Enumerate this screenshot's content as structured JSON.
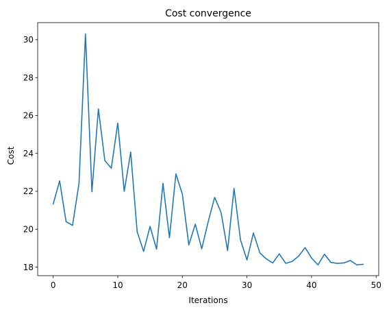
{
  "chart_data": {
    "type": "line",
    "title": "Cost convergence",
    "xlabel": "Iterations",
    "ylabel": "Cost",
    "xlim": [
      -2.4,
      50.4
    ],
    "ylim": [
      17.55,
      30.9
    ],
    "xticks": [
      0,
      10,
      20,
      30,
      40,
      50
    ],
    "yticks": [
      18,
      20,
      22,
      24,
      26,
      28,
      30
    ],
    "grid": false,
    "line_color": "#1f77b4",
    "x": [
      0,
      1,
      2,
      3,
      4,
      5,
      6,
      7,
      8,
      9,
      10,
      11,
      12,
      13,
      14,
      15,
      16,
      17,
      18,
      19,
      20,
      21,
      22,
      23,
      24,
      25,
      26,
      27,
      28,
      29,
      30,
      31,
      32,
      33,
      34,
      35,
      36,
      37,
      38,
      39,
      40,
      41,
      42,
      43,
      44,
      45,
      46,
      47,
      48
    ],
    "series": [
      {
        "values": [
          21.33,
          22.55,
          20.4,
          20.2,
          22.42,
          30.3,
          21.98,
          26.35,
          23.62,
          23.22,
          25.6,
          22.0,
          24.07,
          19.87,
          18.83,
          20.15,
          18.95,
          22.42,
          19.55,
          22.92,
          21.85,
          19.17,
          20.27,
          18.97,
          20.4,
          21.68,
          20.88,
          18.87,
          22.15,
          19.43,
          18.38,
          19.8,
          18.75,
          18.43,
          18.22,
          18.7,
          18.2,
          18.3,
          18.58,
          19.03,
          18.48,
          18.12,
          18.68,
          18.25,
          18.2,
          18.22,
          18.35,
          18.12,
          18.15
        ]
      }
    ]
  }
}
